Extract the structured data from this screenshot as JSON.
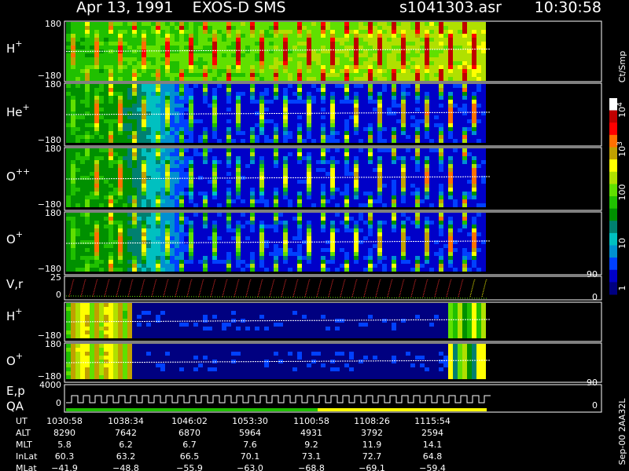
{
  "header": {
    "title": "Apr 13, 1991    EXOS-D SMS",
    "file": "s1041303.asr",
    "time": "10:30:58"
  },
  "panels": [
    {
      "label": "H",
      "sup": "+",
      "ticks": [
        "180",
        "−180"
      ]
    },
    {
      "label": "He",
      "sup": "+",
      "ticks": [
        "180",
        "−180"
      ]
    },
    {
      "label": "O",
      "sup": "++",
      "ticks": [
        "180",
        "−180"
      ]
    },
    {
      "label": "O",
      "sup": "+",
      "ticks": [
        "180",
        "−180"
      ]
    },
    {
      "label": "V,r",
      "ticks": [
        "25",
        "0"
      ],
      "right_ticks": [
        "90",
        "0"
      ]
    },
    {
      "label": "H",
      "sup": "+",
      "ticks": [
        "−180"
      ]
    },
    {
      "label": "O",
      "sup": "+",
      "ticks": [
        "180",
        "−180"
      ],
      "right_ticks": [
        "90"
      ]
    },
    {
      "label": "E,p",
      "label2": "QA",
      "ticks": [
        "4000",
        "0"
      ],
      "right_ticks": [
        "0"
      ]
    }
  ],
  "colorbar": {
    "unit": "Ct/Smp",
    "labels": [
      {
        "text": "10",
        "sup": "4"
      },
      {
        "text": "10",
        "sup": "3"
      },
      {
        "text": "100"
      },
      {
        "text": "10"
      },
      {
        "text": "1"
      }
    ]
  },
  "note": "Sep-00  2AA32L",
  "table": {
    "rows": [
      {
        "label": "UT",
        "values": [
          "1030:58",
          "1038:34",
          "1046:02",
          "1053:30",
          "1100:58",
          "1108:26",
          "1115:54"
        ]
      },
      {
        "label": "ALT",
        "values": [
          "8290",
          "7642",
          "6870",
          "5964",
          "4931",
          "3792",
          "2594"
        ]
      },
      {
        "label": "MLT",
        "values": [
          "5.8",
          "6.2",
          "6.7",
          "7.6",
          "9.2",
          "11.9",
          "14.1"
        ]
      },
      {
        "label": "InLat",
        "values": [
          "60.3",
          "63.2",
          "66.5",
          "70.1",
          "73.1",
          "72.7",
          "64.8"
        ]
      },
      {
        "label": "MLat",
        "values": [
          "−41.9",
          "−48.8",
          "−55.9",
          "−63.0",
          "−68.8",
          "−69.1",
          "−59.4"
        ]
      }
    ]
  }
}
